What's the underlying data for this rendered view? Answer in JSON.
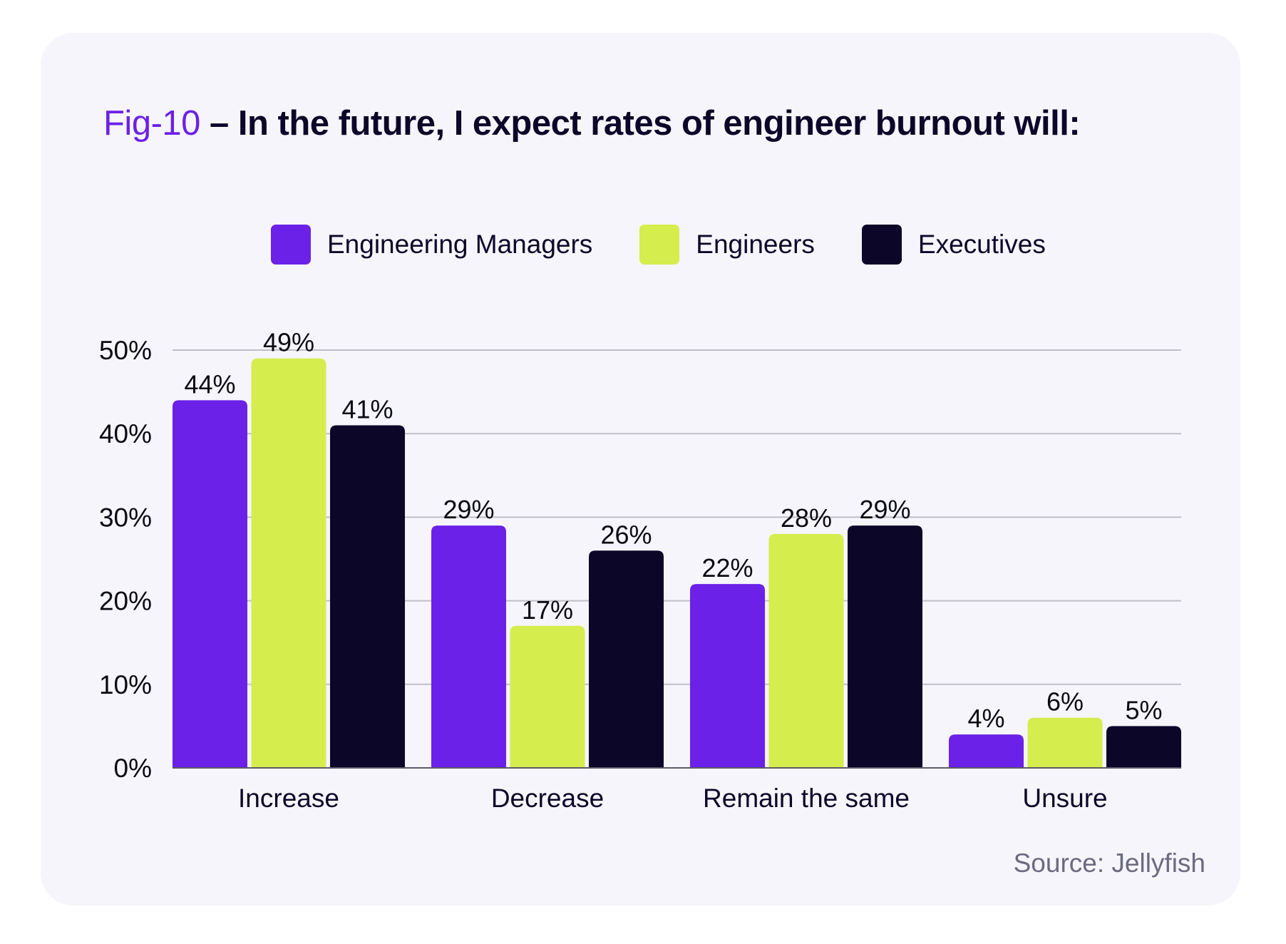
{
  "figure": {
    "fig_label": "Fig-10",
    "separator": " – ",
    "title": "In the future, I expect rates of engineer burnout will:",
    "source": "Source: Jellyfish"
  },
  "legend": [
    {
      "label": "Engineering Managers",
      "color": "#6b21e8"
    },
    {
      "label": "Engineers",
      "color": "#d6ed4e"
    },
    {
      "label": "Executives",
      "color": "#0c0729"
    }
  ],
  "chart_data": {
    "type": "bar",
    "title": "Fig-10 – In the future, I expect rates of engineer burnout will:",
    "xlabel": "",
    "ylabel": "",
    "categories": [
      "Increase",
      "Decrease",
      "Remain the same",
      "Unsure"
    ],
    "series": [
      {
        "name": "Engineering Managers",
        "color": "#6b21e8",
        "values": [
          44,
          29,
          22,
          4
        ],
        "labels": [
          "44%",
          "29%",
          "22%",
          "4%"
        ]
      },
      {
        "name": "Engineers",
        "color": "#d6ed4e",
        "values": [
          49,
          17,
          28,
          6
        ],
        "labels": [
          "49%",
          "17%",
          "28%",
          "6%"
        ]
      },
      {
        "name": "Executives",
        "color": "#0c0729",
        "values": [
          41,
          26,
          29,
          5
        ],
        "labels": [
          "41%",
          "26%",
          "29%",
          "5%"
        ]
      }
    ],
    "ylim": [
      0,
      50
    ],
    "yticks": [
      0,
      10,
      20,
      30,
      40,
      50
    ],
    "ytick_labels": [
      "0%",
      "10%",
      "20%",
      "30%",
      "40%",
      "50%"
    ],
    "grid": true,
    "legend_position": "top-center",
    "source": "Source: Jellyfish"
  }
}
